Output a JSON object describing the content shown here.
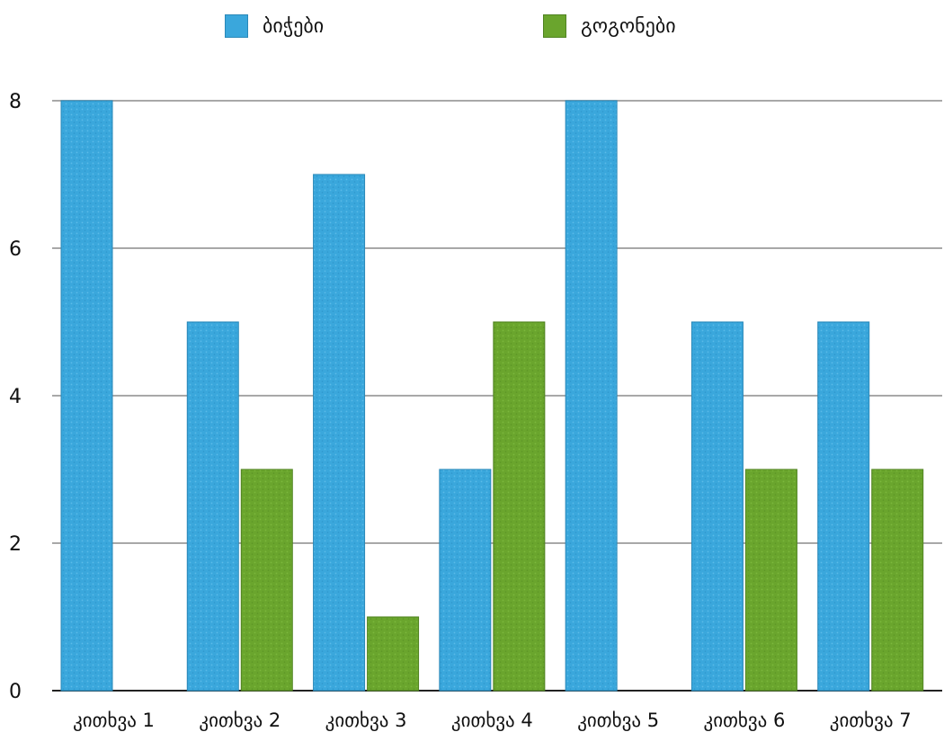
{
  "chart_data": {
    "type": "bar",
    "title": "",
    "xlabel": "",
    "ylabel": "",
    "categories": [
      "კითხვა 1",
      "კითხვა 2",
      "კითხვა 3",
      "კითხვა 4",
      "კითხვა 5",
      "კითხვა 6",
      "კითხვა 7"
    ],
    "series": [
      {
        "name": "ბიჭები",
        "color": "#3aa7dc",
        "values": [
          8,
          5,
          7,
          3,
          8,
          5,
          5
        ]
      },
      {
        "name": "გოგონები",
        "color": "#6aa52d",
        "values": [
          0,
          3,
          1,
          5,
          0,
          3,
          3
        ]
      }
    ],
    "ylim": [
      0,
      8
    ],
    "yticks": [
      "0",
      "2",
      "4",
      "6",
      "8"
    ],
    "grid": true,
    "legend": "top-center"
  }
}
